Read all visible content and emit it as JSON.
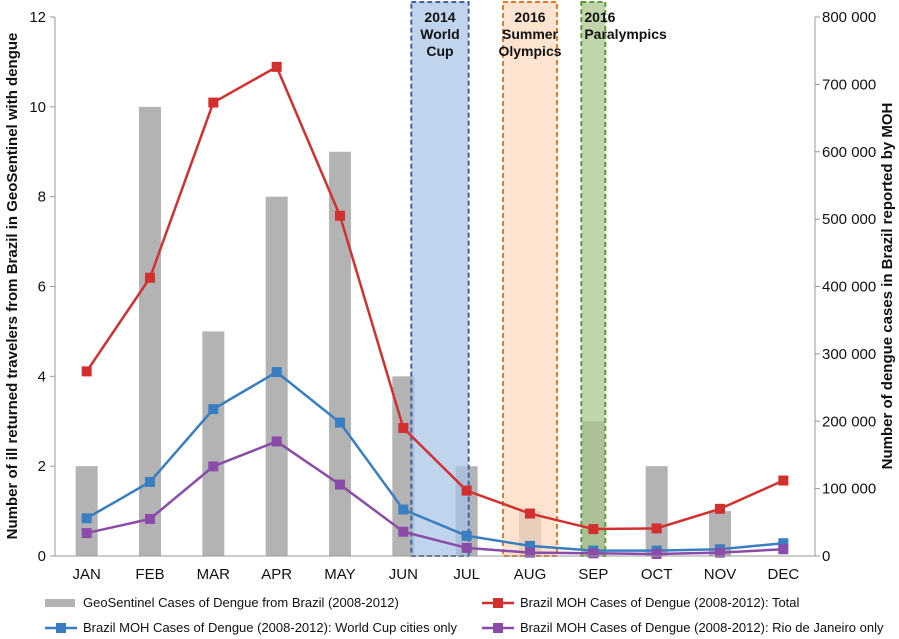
{
  "chart_data": {
    "type": "bar",
    "categories": [
      "JAN",
      "FEB",
      "MAR",
      "APR",
      "MAY",
      "JUN",
      "JUL",
      "AUG",
      "SEP",
      "OCT",
      "NOV",
      "DEC"
    ],
    "left_axis": {
      "label": "Number of ill returned travelers from Brazil in GeoSentinel with dengue",
      "ylim": [
        0,
        12
      ],
      "ticks": [
        0,
        2,
        4,
        6,
        8,
        10,
        12
      ],
      "tick_labels": [
        "0",
        "2",
        "4",
        "6",
        "8",
        "10",
        "12"
      ]
    },
    "right_axis": {
      "label": "Number of dengue cases in Brazil reported by MOH",
      "ylim": [
        0,
        800000
      ],
      "ticks": [
        0,
        100000,
        200000,
        300000,
        400000,
        500000,
        600000,
        700000,
        800000
      ],
      "tick_labels": [
        "0",
        "100 000",
        "200 000",
        "300 000",
        "400 000",
        "500 000",
        "600 000",
        "700 000",
        "800 000"
      ]
    },
    "series": [
      {
        "name": "GeoSentinel Cases of Dengue from Brazil (2008-2012)",
        "type": "bar",
        "axis": "left",
        "color": "#b3b3b3",
        "values": [
          2,
          10,
          5,
          8,
          9,
          4,
          2,
          1,
          3,
          2,
          1,
          0
        ]
      },
      {
        "name": "Brazil MOH Cases of Dengue (2008-2012): Total",
        "type": "line",
        "axis": "right",
        "color": "#d2302f",
        "values": [
          274000,
          413000,
          673000,
          726000,
          505000,
          190000,
          97000,
          63000,
          40000,
          41000,
          70000,
          112000
        ]
      },
      {
        "name": "Brazil MOH Cases of Dengue (2008-2012): World Cup cities only",
        "type": "line",
        "axis": "right",
        "color": "#3a7ec2",
        "values": [
          56000,
          110000,
          218000,
          273000,
          198000,
          69000,
          30000,
          15000,
          8000,
          8000,
          10000,
          19000
        ]
      },
      {
        "name": "Brazil MOH Cases of Dengue (2008-2012): Rio de Janeiro only",
        "type": "line",
        "axis": "right",
        "color": "#8a4ca8",
        "values": [
          34000,
          55000,
          133000,
          170000,
          106000,
          36000,
          12000,
          5000,
          4000,
          3000,
          5000,
          10000
        ]
      }
    ],
    "annotations": [
      {
        "label_lines": [
          "2014",
          "World",
          "Cup"
        ],
        "from": "JUN",
        "to": "JUL",
        "fill": "#a9c3e7",
        "stroke": "#3b62a8"
      },
      {
        "label_lines": [
          "2016",
          "Summer",
          "Olympics"
        ],
        "from": "AUG",
        "to": "AUG",
        "fill": "#fbd9bf",
        "stroke": "#e8782a"
      },
      {
        "label_lines": [
          "2016",
          "Paralympics"
        ],
        "from": "SEP",
        "to": "SEP",
        "fill": "#a9c58a",
        "stroke": "#5f9a3a"
      }
    ],
    "grid": false,
    "legend_position": "bottom"
  }
}
